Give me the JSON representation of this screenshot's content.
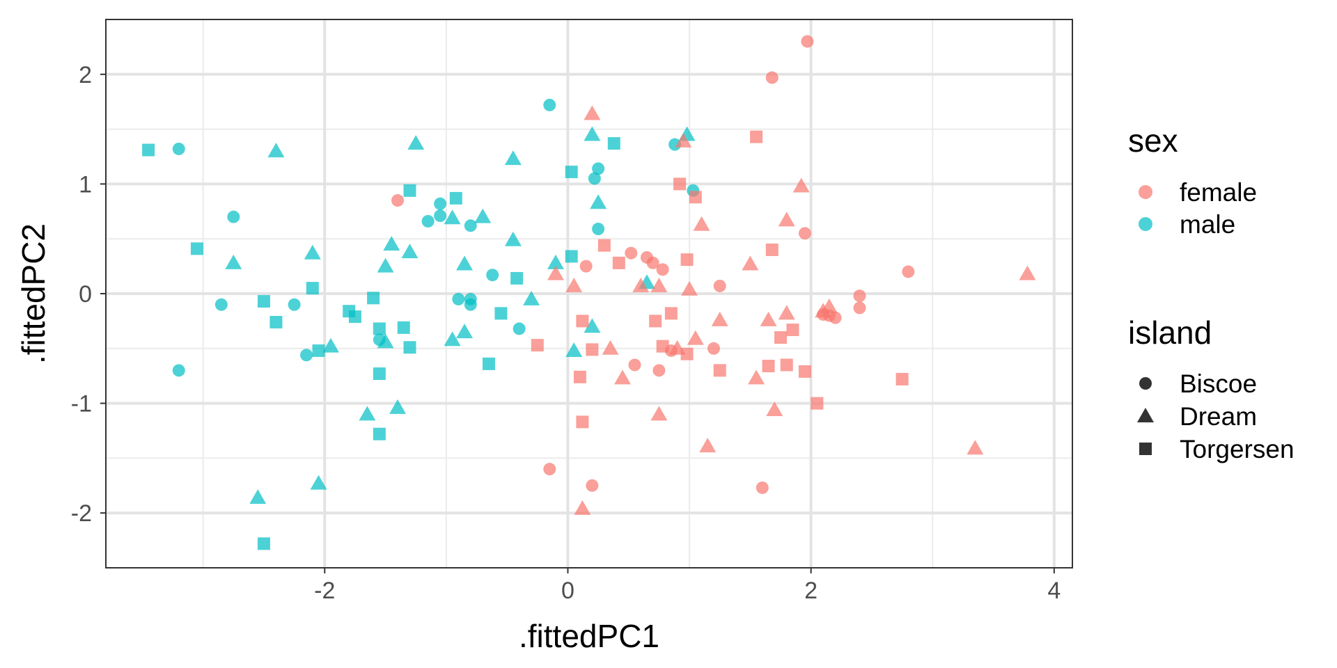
{
  "chart_data": {
    "type": "scatter",
    "title": "",
    "xlabel": ".fittedPC1",
    "ylabel": ".fittedPC2",
    "xlim": [
      -3.8,
      4.15
    ],
    "ylim": [
      -2.5,
      2.5
    ],
    "x_ticks": [
      -2,
      0,
      2,
      4
    ],
    "x_tick_labels": [
      "-2",
      "0",
      "2",
      "4"
    ],
    "y_ticks": [
      -2,
      -1,
      0,
      1,
      2
    ],
    "y_tick_labels": [
      "-2",
      "-1",
      "0",
      "1",
      "2"
    ],
    "grid": true,
    "legend_position": "right",
    "colors": {
      "female": "#F8766D",
      "male": "#00BFC4"
    },
    "legends": [
      {
        "title": "sex",
        "entries": [
          {
            "label": "female",
            "key": "female"
          },
          {
            "label": "male",
            "key": "male"
          }
        ]
      },
      {
        "title": "island",
        "entries": [
          {
            "label": "Biscoe",
            "shape": "circle"
          },
          {
            "label": "Dream",
            "shape": "triangle"
          },
          {
            "label": "Torgersen",
            "shape": "square"
          }
        ]
      }
    ],
    "series": [
      {
        "sex": "male",
        "island": "Biscoe",
        "points": [
          [
            -3.2,
            1.32
          ],
          [
            -2.75,
            0.7
          ],
          [
            -2.85,
            -0.1
          ],
          [
            -3.2,
            -0.7
          ],
          [
            -2.25,
            -0.1
          ],
          [
            -2.15,
            -0.56
          ],
          [
            -1.55,
            -0.42
          ],
          [
            -0.15,
            1.72
          ],
          [
            -1.15,
            0.66
          ],
          [
            -1.05,
            0.82
          ],
          [
            -1.05,
            0.71
          ],
          [
            -0.8,
            0.62
          ],
          [
            -0.9,
            -0.05
          ],
          [
            -0.8,
            -0.05
          ],
          [
            -0.8,
            -0.1
          ],
          [
            -0.62,
            0.17
          ],
          [
            -0.4,
            -0.32
          ],
          [
            0.22,
            1.05
          ],
          [
            0.25,
            1.14
          ],
          [
            0.25,
            0.59
          ],
          [
            0.88,
            1.36
          ],
          [
            1.03,
            0.94
          ]
        ]
      },
      {
        "sex": "male",
        "island": "Dream",
        "points": [
          [
            -2.4,
            1.3
          ],
          [
            -2.75,
            0.28
          ],
          [
            -2.1,
            0.37
          ],
          [
            -1.95,
            -0.48
          ],
          [
            -2.05,
            -1.73
          ],
          [
            -2.55,
            -1.86
          ],
          [
            -1.65,
            -1.1
          ],
          [
            -1.4,
            -1.04
          ],
          [
            -1.45,
            0.45
          ],
          [
            -1.5,
            0.25
          ],
          [
            -1.3,
            0.38
          ],
          [
            -1.25,
            1.37
          ],
          [
            -1.5,
            -0.44
          ],
          [
            -0.95,
            -0.42
          ],
          [
            -0.95,
            0.69
          ],
          [
            -0.85,
            0.27
          ],
          [
            -0.85,
            -0.35
          ],
          [
            -0.7,
            0.7
          ],
          [
            -0.45,
            0.49
          ],
          [
            -0.3,
            -0.05
          ],
          [
            -0.1,
            0.28
          ],
          [
            -0.45,
            1.23
          ],
          [
            0.05,
            -0.52
          ],
          [
            0.2,
            1.45
          ],
          [
            0.25,
            0.83
          ],
          [
            0.2,
            -0.3
          ],
          [
            0.65,
            0.1
          ],
          [
            0.98,
            1.45
          ]
        ]
      },
      {
        "sex": "male",
        "island": "Torgersen",
        "points": [
          [
            -3.45,
            1.31
          ],
          [
            -3.05,
            0.41
          ],
          [
            -2.1,
            0.05
          ],
          [
            -2.5,
            -0.07
          ],
          [
            -2.4,
            -0.26
          ],
          [
            -2.05,
            -0.52
          ],
          [
            -1.8,
            -0.16
          ],
          [
            -1.75,
            -0.21
          ],
          [
            -1.6,
            -0.04
          ],
          [
            -1.55,
            -0.32
          ],
          [
            -1.55,
            -0.73
          ],
          [
            -1.55,
            -1.28
          ],
          [
            -1.35,
            -0.31
          ],
          [
            -1.3,
            -0.49
          ],
          [
            -1.3,
            0.94
          ],
          [
            -0.92,
            0.87
          ],
          [
            -0.65,
            -0.64
          ],
          [
            -0.55,
            -0.18
          ],
          [
            -0.42,
            0.14
          ],
          [
            0.03,
            1.11
          ],
          [
            0.03,
            0.34
          ],
          [
            0.38,
            1.37
          ],
          [
            -2.5,
            -2.28
          ]
        ]
      },
      {
        "sex": "female",
        "island": "Biscoe",
        "points": [
          [
            -1.4,
            0.85
          ],
          [
            0.15,
            0.25
          ],
          [
            0.52,
            0.37
          ],
          [
            0.65,
            0.33
          ],
          [
            0.7,
            0.28
          ],
          [
            0.78,
            0.22
          ],
          [
            1.25,
            0.07
          ],
          [
            0.55,
            -0.65
          ],
          [
            0.75,
            -0.7
          ],
          [
            0.85,
            -0.52
          ],
          [
            1.2,
            -0.5
          ],
          [
            1.95,
            0.55
          ],
          [
            2.1,
            -0.19
          ],
          [
            2.15,
            -0.2
          ],
          [
            2.2,
            -0.22
          ],
          [
            2.4,
            -0.02
          ],
          [
            2.4,
            -0.13
          ],
          [
            2.8,
            0.2
          ],
          [
            1.68,
            1.97
          ],
          [
            1.97,
            2.3
          ],
          [
            -0.15,
            -1.6
          ],
          [
            0.2,
            -1.75
          ],
          [
            1.6,
            -1.77
          ]
        ]
      },
      {
        "sex": "female",
        "island": "Dream",
        "points": [
          [
            -0.1,
            0.18
          ],
          [
            0.05,
            0.07
          ],
          [
            0.2,
            1.64
          ],
          [
            0.35,
            -0.5
          ],
          [
            0.45,
            -0.77
          ],
          [
            0.6,
            0.07
          ],
          [
            0.75,
            0.07
          ],
          [
            0.75,
            -1.1
          ],
          [
            0.9,
            -0.5
          ],
          [
            0.95,
            1.39
          ],
          [
            1.0,
            0.04
          ],
          [
            1.05,
            -0.41
          ],
          [
            1.1,
            0.63
          ],
          [
            1.15,
            -1.39
          ],
          [
            1.25,
            -0.24
          ],
          [
            1.5,
            0.27
          ],
          [
            1.55,
            -0.77
          ],
          [
            1.65,
            -0.24
          ],
          [
            1.7,
            -1.06
          ],
          [
            1.8,
            0.67
          ],
          [
            1.8,
            -0.18
          ],
          [
            1.92,
            0.98
          ],
          [
            2.1,
            -0.16
          ],
          [
            2.15,
            -0.12
          ],
          [
            3.35,
            -1.41
          ],
          [
            3.78,
            0.18
          ],
          [
            0.12,
            -1.96
          ]
        ]
      },
      {
        "sex": "female",
        "island": "Torgersen",
        "points": [
          [
            -0.25,
            -0.47
          ],
          [
            0.1,
            -0.76
          ],
          [
            0.12,
            -1.17
          ],
          [
            0.12,
            -0.25
          ],
          [
            0.2,
            -0.51
          ],
          [
            0.3,
            0.44
          ],
          [
            0.42,
            0.28
          ],
          [
            0.72,
            -0.25
          ],
          [
            0.78,
            -0.48
          ],
          [
            0.85,
            -0.18
          ],
          [
            0.92,
            1.0
          ],
          [
            0.98,
            0.31
          ],
          [
            0.98,
            -0.55
          ],
          [
            1.05,
            0.88
          ],
          [
            1.25,
            -0.7
          ],
          [
            1.55,
            1.43
          ],
          [
            1.65,
            -0.66
          ],
          [
            1.68,
            0.4
          ],
          [
            1.75,
            -0.4
          ],
          [
            1.8,
            -0.65
          ],
          [
            1.85,
            -0.33
          ],
          [
            1.95,
            -0.71
          ],
          [
            2.05,
            -1.0
          ],
          [
            2.75,
            -0.78
          ]
        ]
      }
    ]
  }
}
